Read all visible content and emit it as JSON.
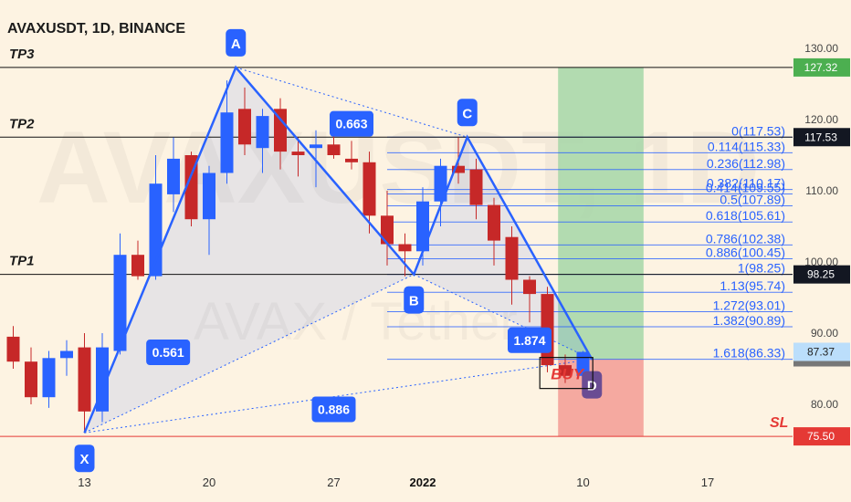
{
  "chart_data": {
    "type": "candlestick",
    "title": "AVAXUSDT, 1D, BINANCE",
    "watermark": {
      "main": "AVAXUSDT, 1D",
      "sub": "AVAX / Tether"
    },
    "y_axis": {
      "min": 73,
      "max": 133,
      "ticks": [
        "130.00",
        "120.00",
        "110.00",
        "100.00",
        "90.00",
        "80.00"
      ]
    },
    "x_axis": {
      "ticks": [
        {
          "label": "13",
          "day": 0
        },
        {
          "label": "20",
          "day": 7
        },
        {
          "label": "27",
          "day": 14
        },
        {
          "label": "2022",
          "day": 19,
          "bold": true
        },
        {
          "label": "10",
          "day": 28
        },
        {
          "label": "17",
          "day": 35
        }
      ]
    },
    "candles": [
      {
        "day": -4,
        "open": 89.5,
        "high": 91.0,
        "low": 85.0,
        "close": 86.0
      },
      {
        "day": -3,
        "open": 86.0,
        "high": 88.0,
        "low": 80.0,
        "close": 81.0
      },
      {
        "day": -2,
        "open": 81.0,
        "high": 87.5,
        "low": 79.5,
        "close": 86.5
      },
      {
        "day": -1,
        "open": 86.5,
        "high": 89.0,
        "low": 84.0,
        "close": 87.5
      },
      {
        "day": 0,
        "open": 88.0,
        "high": 90.0,
        "low": 76.0,
        "close": 79.0
      },
      {
        "day": 1,
        "open": 79.0,
        "high": 90.0,
        "low": 77.5,
        "close": 88.0
      },
      {
        "day": 2,
        "open": 87.5,
        "high": 104.0,
        "low": 87.0,
        "close": 101.0
      },
      {
        "day": 3,
        "open": 101.0,
        "high": 103.0,
        "low": 97.5,
        "close": 98.0
      },
      {
        "day": 4,
        "open": 98.0,
        "high": 115.0,
        "low": 97.5,
        "close": 111.0
      },
      {
        "day": 5,
        "open": 109.5,
        "high": 117.5,
        "low": 107.0,
        "close": 114.5
      },
      {
        "day": 6,
        "open": 115.0,
        "high": 115.5,
        "low": 105.0,
        "close": 106.0
      },
      {
        "day": 7,
        "open": 106.0,
        "high": 113.5,
        "low": 101.0,
        "close": 112.5
      },
      {
        "day": 8,
        "open": 112.5,
        "high": 125.5,
        "low": 111.0,
        "close": 121.0
      },
      {
        "day": 9,
        "open": 121.5,
        "high": 124.5,
        "low": 115.0,
        "close": 116.5
      },
      {
        "day": 10,
        "open": 116.0,
        "high": 121.5,
        "low": 112.5,
        "close": 120.5
      },
      {
        "day": 11,
        "open": 121.5,
        "high": 123.0,
        "low": 113.0,
        "close": 115.5
      },
      {
        "day": 12,
        "open": 115.5,
        "high": 117.5,
        "low": 112.0,
        "close": 115.0
      },
      {
        "day": 13,
        "open": 116.0,
        "high": 118.5,
        "low": 110.5,
        "close": 116.5
      },
      {
        "day": 14,
        "open": 116.5,
        "high": 120.0,
        "low": 114.5,
        "close": 115.0
      },
      {
        "day": 15,
        "open": 114.5,
        "high": 117.0,
        "low": 113.0,
        "close": 114.0
      },
      {
        "day": 16,
        "open": 114.0,
        "high": 115.5,
        "low": 104.0,
        "close": 106.5
      },
      {
        "day": 17,
        "open": 106.5,
        "high": 110.0,
        "low": 99.5,
        "close": 102.5
      },
      {
        "day": 18,
        "open": 102.5,
        "high": 104.0,
        "low": 98.0,
        "close": 101.5
      },
      {
        "day": 19,
        "open": 101.5,
        "high": 110.5,
        "low": 99.5,
        "close": 108.5
      },
      {
        "day": 20,
        "open": 108.5,
        "high": 114.5,
        "low": 105.0,
        "close": 113.5
      },
      {
        "day": 21,
        "open": 113.5,
        "high": 117.5,
        "low": 111.0,
        "close": 112.5
      },
      {
        "day": 22,
        "open": 113.0,
        "high": 114.5,
        "low": 106.0,
        "close": 108.0
      },
      {
        "day": 23,
        "open": 108.0,
        "high": 109.0,
        "low": 99.5,
        "close": 103.0
      },
      {
        "day": 24,
        "open": 103.5,
        "high": 105.0,
        "low": 94.0,
        "close": 97.5
      },
      {
        "day": 25,
        "open": 97.5,
        "high": 98.0,
        "low": 91.5,
        "close": 95.5
      },
      {
        "day": 26,
        "open": 95.5,
        "high": 96.5,
        "low": 84.5,
        "close": 85.5
      },
      {
        "day": 27,
        "open": 85.5,
        "high": 87.0,
        "low": 83.0,
        "close": 84.0
      },
      {
        "day": 28,
        "open": 84.0,
        "high": 87.5,
        "low": 83.5,
        "close": 87.37
      }
    ],
    "levels": [
      {
        "name": "TP3",
        "price": 127.32,
        "tag": "127.32",
        "tag_color": "#4caf50"
      },
      {
        "name": "TP2",
        "price": 117.53,
        "tag": "117.53",
        "tag_color": "#131722"
      },
      {
        "name": "TP1",
        "price": 98.25,
        "tag": "98.25",
        "tag_color": "#131722"
      },
      {
        "name": "SL",
        "price": 75.5,
        "tag": "75.50",
        "tag_color": "#e53935"
      }
    ],
    "last_price": {
      "value": 87.37,
      "tag": "87.37"
    },
    "fib_levels": [
      {
        "label": "0(117.53)",
        "price": 117.53
      },
      {
        "label": "0.114(115.33)",
        "price": 115.33
      },
      {
        "label": "0.236(112.98)",
        "price": 112.98
      },
      {
        "label": "0.382(110.17)",
        "price": 110.17
      },
      {
        "label": "0.414(109.55)",
        "price": 109.55
      },
      {
        "label": "0.5(107.89)",
        "price": 107.89
      },
      {
        "label": "0.618(105.61)",
        "price": 105.61
      },
      {
        "label": "0.786(102.38)",
        "price": 102.38
      },
      {
        "label": "0.886(100.45)",
        "price": 100.45
      },
      {
        "label": "1(98.25)",
        "price": 98.25
      },
      {
        "label": "1.13(95.74)",
        "price": 95.74
      },
      {
        "label": "1.272(93.01)",
        "price": 93.01
      },
      {
        "label": "1.382(90.89)",
        "price": 90.89
      },
      {
        "label": "1.618(86.33)",
        "price": 86.33
      }
    ],
    "pattern_points": [
      {
        "label": "X",
        "day": 0,
        "price": 76.0
      },
      {
        "label": "A",
        "day": 8.5,
        "price": 127.32
      },
      {
        "label": "B",
        "day": 18.5,
        "price": 98.25
      },
      {
        "label": "C",
        "day": 21.5,
        "price": 117.53
      },
      {
        "label": "D",
        "day": 28.5,
        "price": 86.33
      }
    ],
    "ratios": [
      {
        "label": "0.561",
        "day": 4.7,
        "price": 87.3
      },
      {
        "label": "0.663",
        "day": 15.0,
        "price": 119.4
      },
      {
        "label": "1.874",
        "day": 25.0,
        "price": 89.0
      },
      {
        "label": "0.886",
        "day": 14.0,
        "price": 79.3
      }
    ],
    "position": {
      "entry": 86.33,
      "target": 127.32,
      "stop": 75.5,
      "day_start": 26.6,
      "day_end": 31.4
    },
    "buy_label": "BUY",
    "colors": {
      "up": "#2962ff",
      "down": "#c62828",
      "pattern": "#2962ff",
      "profit_zone": "#a5d6a7",
      "loss_zone": "#f4a199",
      "fib": "#2962ff"
    }
  }
}
